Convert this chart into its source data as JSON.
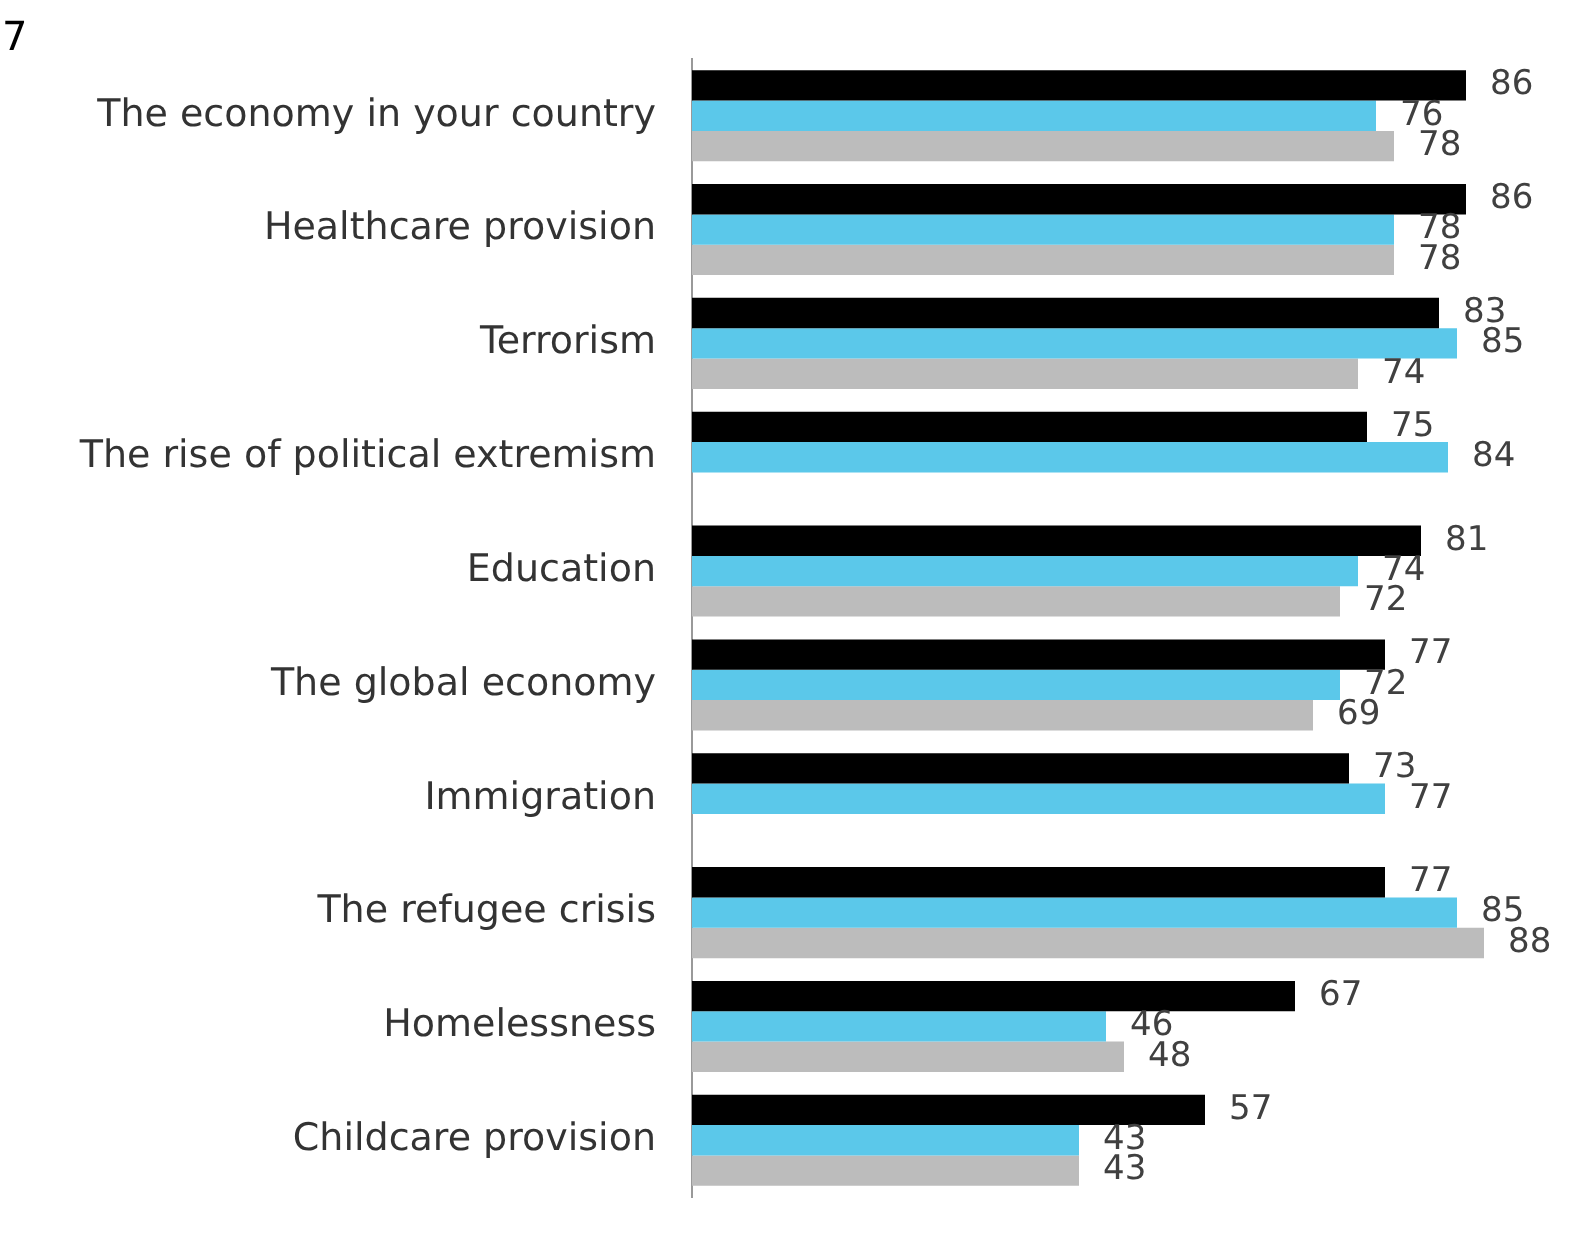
{
  "chart_data": {
    "type": "bar",
    "orientation": "horizontal",
    "categories": [
      "The economy in your country",
      "Healthcare provision",
      "Terrorism",
      "The rise of political extremism",
      "Education",
      "The global economy",
      "Immigration",
      "The refugee crisis",
      "Homelessness",
      "Childcare provision"
    ],
    "series": [
      {
        "color": "#000000",
        "values": [
          86,
          86,
          83,
          75,
          81,
          77,
          73,
          77,
          67,
          57
        ]
      },
      {
        "color": "#5bc8ea",
        "values": [
          76,
          78,
          85,
          84,
          74,
          72,
          77,
          85,
          46,
          43
        ]
      },
      {
        "color": "#bcbcbc",
        "values": [
          78,
          78,
          74,
          null,
          72,
          69,
          null,
          88,
          48,
          43
        ]
      }
    ],
    "data_labels": true,
    "legend": false,
    "tick_labels": "y",
    "annotations": [
      "7"
    ]
  }
}
